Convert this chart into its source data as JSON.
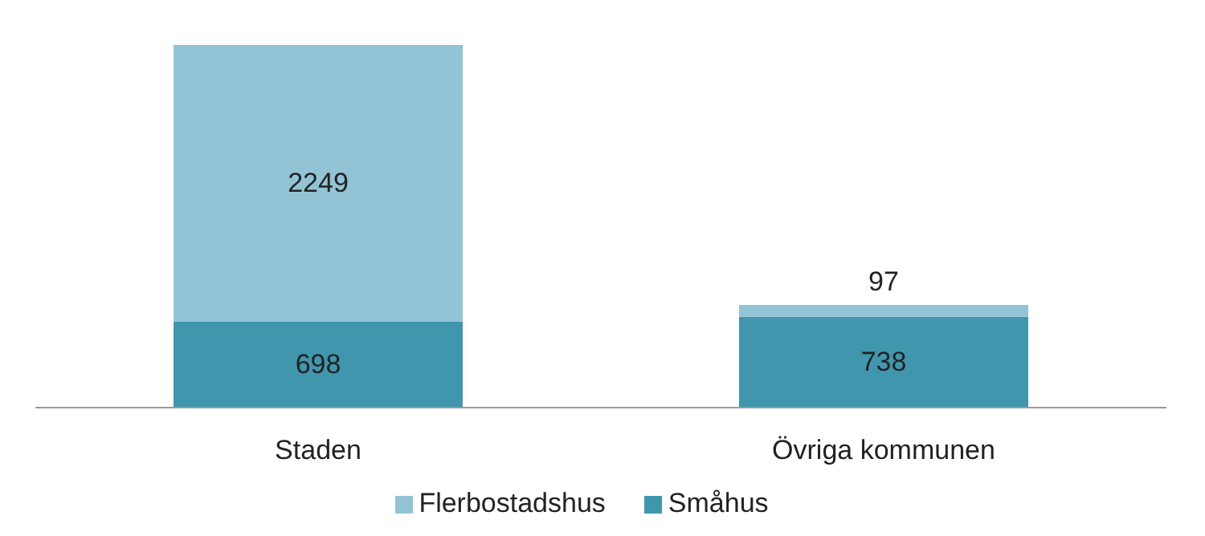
{
  "chart_data": {
    "type": "bar",
    "stacked": true,
    "categories": [
      "Staden",
      "Övriga kommunen"
    ],
    "series": [
      {
        "name": "Småhus",
        "color": "#4097ad",
        "values": [
          698,
          738
        ]
      },
      {
        "name": "Flerbostadshus",
        "color": "#93c4d5",
        "values": [
          2249,
          97
        ]
      }
    ],
    "data_labels": true,
    "legend": "bottom",
    "grid": false
  }
}
